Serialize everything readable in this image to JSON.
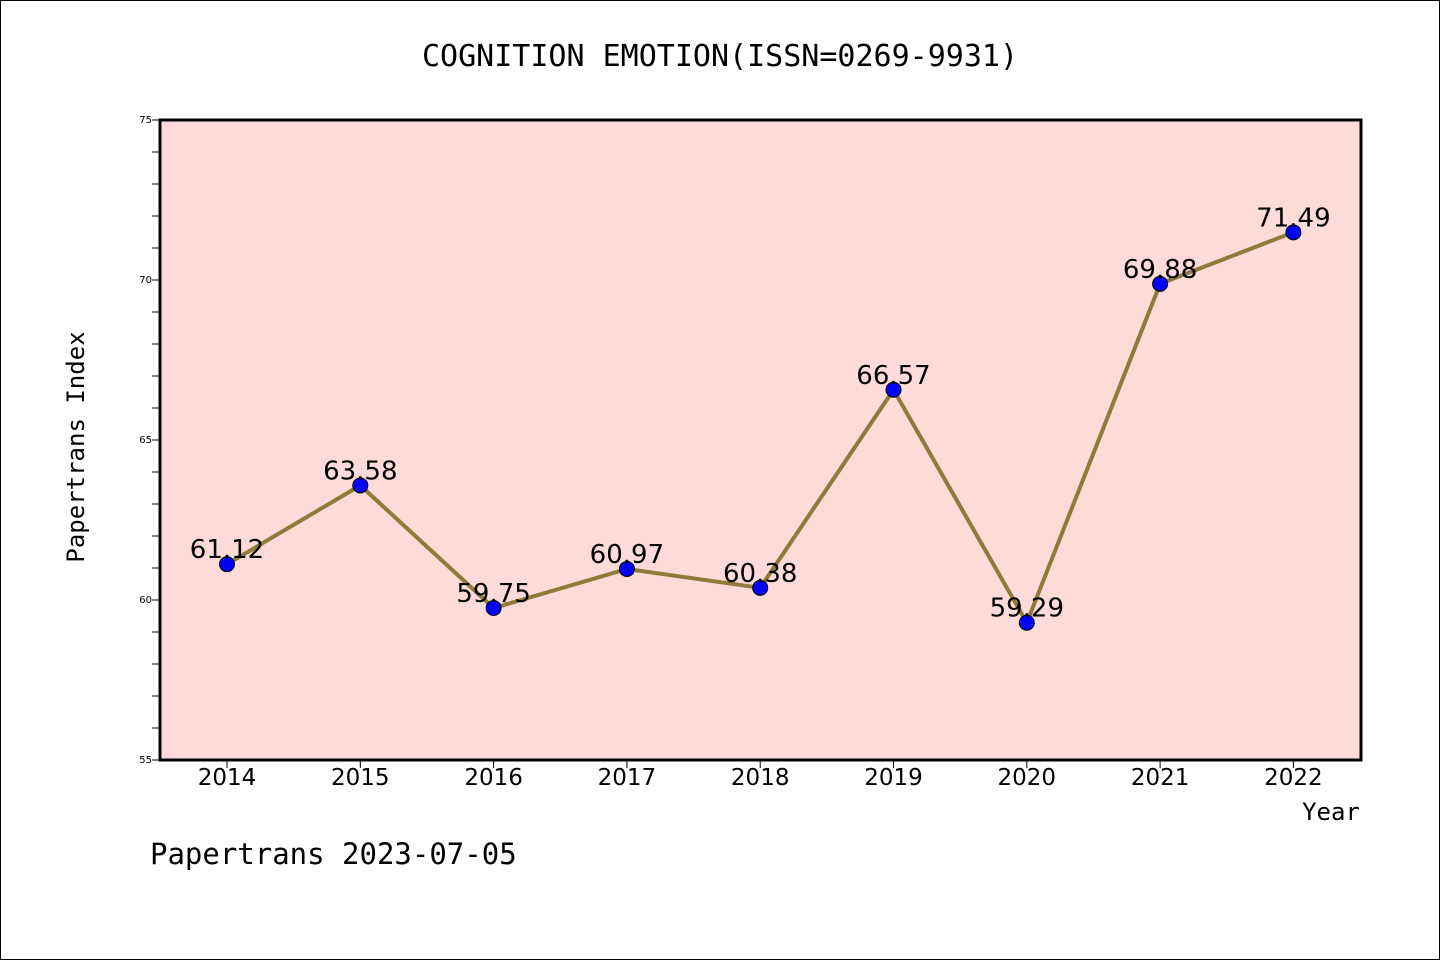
{
  "chart_data": {
    "type": "line",
    "title": "COGNITION EMOTION(ISSN=0269-9931)",
    "xlabel": "Year",
    "ylabel": "Papertrans Index",
    "categories": [
      "2014",
      "2015",
      "2016",
      "2017",
      "2018",
      "2019",
      "2020",
      "2021",
      "2022"
    ],
    "values": [
      61.12,
      63.58,
      59.75,
      60.97,
      60.38,
      66.57,
      59.29,
      69.88,
      71.49
    ],
    "data_labels": [
      "61.12",
      "63.58",
      "59.75",
      "60.97",
      "60.38",
      "66.57",
      "59.29",
      "69.88",
      "71.49"
    ],
    "ylim": [
      55,
      75
    ],
    "yticks": [
      "55",
      "60",
      "65",
      "70",
      "75"
    ],
    "grid": false,
    "legend": "none",
    "colors": {
      "plot_background": "#fddbd8",
      "line": "#8f7a3a",
      "marker": "#0000ff",
      "marker_edge": "#000000"
    }
  },
  "footer": {
    "text": "Papertrans 2023-07-05"
  }
}
